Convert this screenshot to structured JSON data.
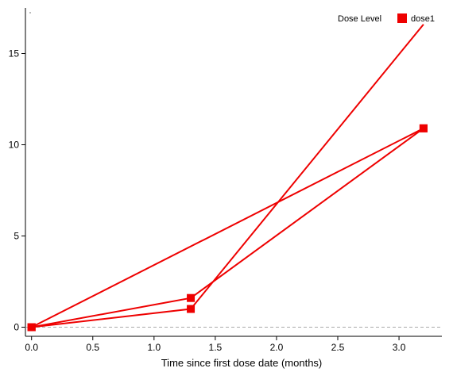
{
  "chart_data": {
    "type": "line",
    "title": "",
    "xlabel": "Time since first dose date (months)",
    "ylabel": "",
    "xlim": [
      -0.05,
      3.35
    ],
    "ylim": [
      -0.5,
      17.5
    ],
    "x_ticks": [
      "0.0",
      "0.5",
      "1.0",
      "1.5",
      "2.0",
      "2.5",
      "3.0"
    ],
    "y_ticks": [
      "0",
      "5",
      "10",
      "15"
    ],
    "reference_line": {
      "y": 0,
      "style": "dashed"
    },
    "legend": {
      "title": "Dose Level",
      "placement": "top-right",
      "entries": [
        {
          "label": "dose1",
          "color": "#ee0000",
          "marker": "square"
        }
      ]
    },
    "series": [
      {
        "name": "dose1",
        "color": "#ee0000",
        "points": [
          [
            0.0,
            0.0
          ],
          [
            1.3,
            1.6
          ],
          [
            3.2,
            10.9
          ]
        ]
      },
      {
        "name": "dose1",
        "color": "#ee0000",
        "points": [
          [
            0.0,
            0.0
          ],
          [
            3.2,
            10.9
          ]
        ]
      },
      {
        "name": "dose1",
        "color": "#ee0000",
        "points": [
          [
            0.0,
            0.0
          ],
          [
            1.3,
            1.0
          ],
          [
            3.2,
            16.6
          ]
        ],
        "marker_last": false
      }
    ],
    "grid": false
  }
}
